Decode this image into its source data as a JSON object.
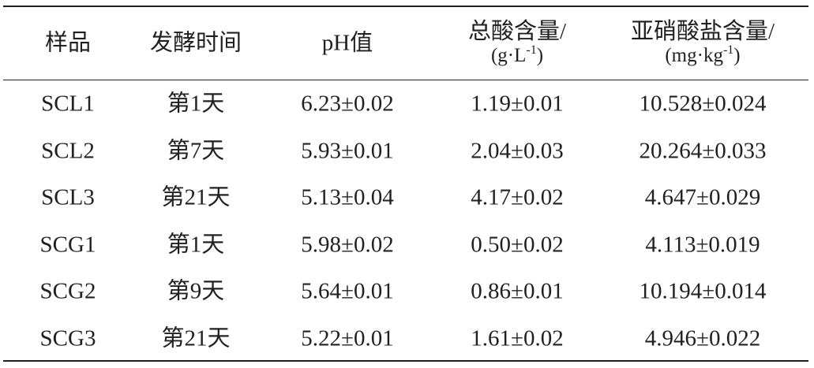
{
  "table": {
    "header": [
      "样品",
      "发酵时间",
      "pH值",
      {
        "line1": "总酸含量/",
        "unit": "(g·L",
        "sup": "-1",
        "end": ")"
      },
      {
        "line1": "亚硝酸盐含量/",
        "unit": "(mg·kg",
        "sup": "-1",
        "end": ")"
      }
    ],
    "rows": [
      [
        "SCL1",
        "第1天",
        "6.23±0.02",
        "1.19±0.01",
        "10.528±0.024"
      ],
      [
        "SCL2",
        "第7天",
        "5.93±0.01",
        "2.04±0.03",
        "20.264±0.033"
      ],
      [
        "SCL3",
        "第21天",
        "5.13±0.04",
        "4.17±0.02",
        "4.647±0.029"
      ],
      [
        "SCG1",
        "第1天",
        "5.98±0.02",
        "0.50±0.02",
        "4.113±0.019"
      ],
      [
        "SCG2",
        "第9天",
        "5.64±0.01",
        "0.86±0.01",
        "10.194±0.014"
      ],
      [
        "SCG3",
        "第21天",
        "5.22±0.01",
        "1.61±0.02",
        "4.946±0.022"
      ]
    ]
  }
}
